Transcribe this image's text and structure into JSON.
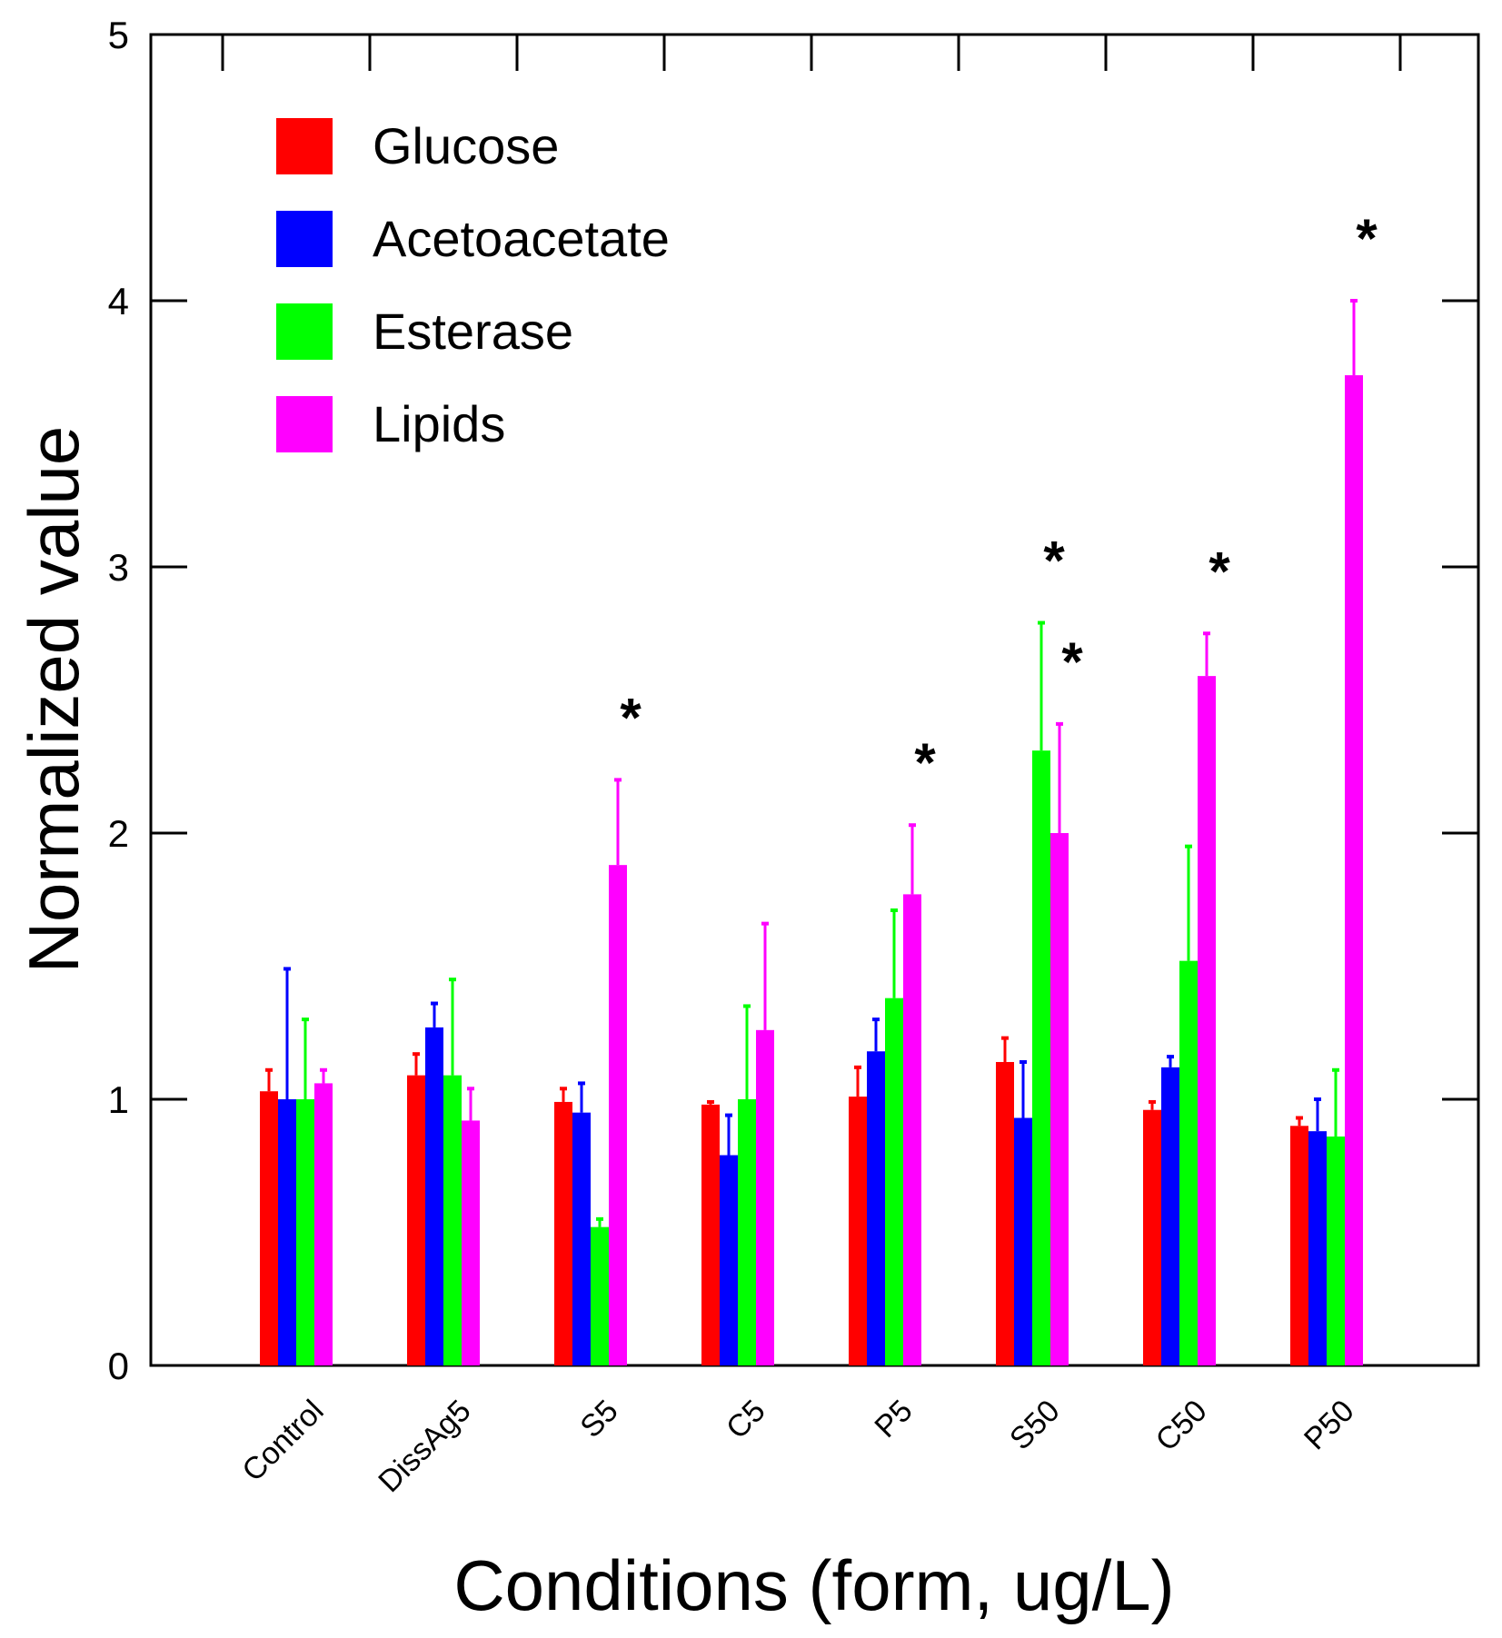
{
  "chart_data": {
    "type": "bar",
    "title": "",
    "xlabel": "Conditions (form, ug/L)",
    "ylabel": "Normalized value",
    "ylim": [
      0,
      5
    ],
    "yticks": [
      "0",
      "1",
      "2",
      "3",
      "4",
      "5"
    ],
    "categories": [
      "Control",
      "DissAg5",
      "S5",
      "C5",
      "P5",
      "S50",
      "C50",
      "P50"
    ],
    "legend_position": "top-left",
    "grid": false,
    "series": [
      {
        "name": "Glucose",
        "color": "#ff0000",
        "values": [
          1.03,
          1.09,
          0.99,
          0.98,
          1.01,
          1.14,
          0.96,
          0.9
        ],
        "errors": [
          0.08,
          0.08,
          0.05,
          0.01,
          0.11,
          0.09,
          0.03,
          0.03
        ]
      },
      {
        "name": "Acetoacetate",
        "color": "#0000ff",
        "values": [
          1.0,
          1.27,
          0.95,
          0.79,
          1.18,
          0.93,
          1.12,
          0.88
        ],
        "errors": [
          0.49,
          0.09,
          0.11,
          0.15,
          0.12,
          0.21,
          0.04,
          0.12
        ]
      },
      {
        "name": "Esterase",
        "color": "#00ff00",
        "values": [
          1.0,
          1.09,
          0.52,
          1.0,
          1.38,
          2.31,
          1.52,
          0.86
        ],
        "errors": [
          0.3,
          0.36,
          0.03,
          0.35,
          0.33,
          0.48,
          0.43,
          0.25
        ]
      },
      {
        "name": "Lipids",
        "color": "#ff00ff",
        "values": [
          1.06,
          0.92,
          1.88,
          1.26,
          1.77,
          2.0,
          2.59,
          3.72
        ],
        "errors": [
          0.05,
          0.12,
          0.32,
          0.4,
          0.26,
          0.41,
          0.16,
          0.28
        ]
      }
    ],
    "annotations": [
      {
        "text": "*",
        "category": "S5",
        "series": "Lipids"
      },
      {
        "text": "*",
        "category": "P5",
        "series": "Lipids"
      },
      {
        "text": "*",
        "category": "S50",
        "series": "Esterase"
      },
      {
        "text": "*",
        "category": "S50",
        "series": "Lipids"
      },
      {
        "text": "*",
        "category": "C50",
        "series": "Lipids"
      },
      {
        "text": "*",
        "category": "P50",
        "series": "Lipids"
      }
    ]
  }
}
